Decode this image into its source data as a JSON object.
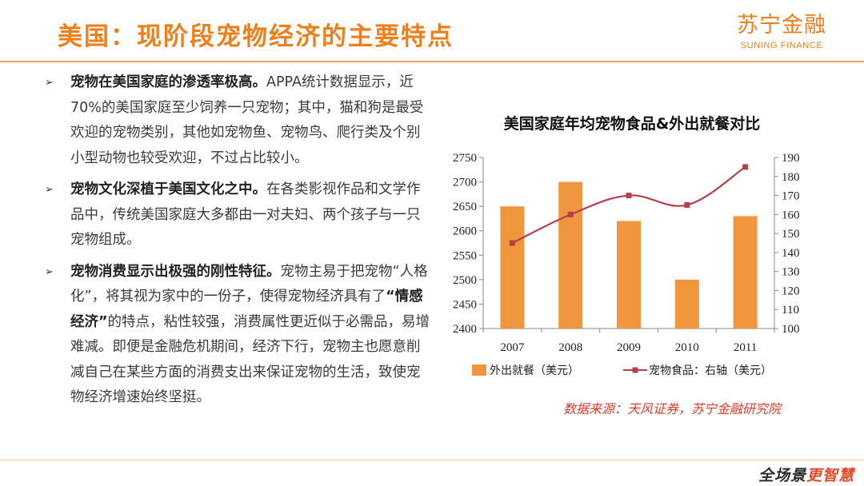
{
  "header": {
    "title": "美国：现阶段宠物经济的主要特点",
    "logo_cn": "苏宁金融",
    "logo_en": "SUNING FINANCE"
  },
  "bullets": [
    {
      "bold": "宠物在美国家庭的渗透率极高。",
      "text": "APPA统计数据显示，近70%的美国家庭至少饲养一只宠物；其中，猫和狗是最受欢迎的宠物类别，其他如宠物鱼、宠物鸟、爬行类及个别小型动物也较受欢迎，不过占比较小。"
    },
    {
      "bold": "宠物文化深植于美国文化之中。",
      "text": "在各类影视作品和文学作品中，传统美国家庭大多都由一对夫妇、两个孩子与一只宠物组成。"
    },
    {
      "bold": "宠物消费显示出极强的刚性特征。",
      "text_before": "宠物主易于把宠物“人格化”，将其视为家中的一份子，使得宠物经济具有了",
      "bold_inline": "“情感经济”",
      "text_after": "的特点，粘性较强，消费属性更近似于必需品，易增难减。即便是金融危机期间，经济下行，宠物主也愿意削减自己在某些方面的消费支出来保证宠物的生活，致使宠物经济增速始终坚挺。"
    }
  ],
  "chart_data": {
    "type": "bar",
    "title": "美国家庭年均宠物食品&外出就餐对比",
    "categories": [
      "2007",
      "2008",
      "2009",
      "2010",
      "2011"
    ],
    "series": [
      {
        "name": "外出就餐（美元）",
        "type": "bar",
        "axis": "left",
        "color": "#f0963e",
        "values": [
          2650,
          2700,
          2620,
          2500,
          2630
        ]
      },
      {
        "name": "宠物食品：右轴（美元）",
        "type": "line",
        "axis": "right",
        "color": "#b5404a",
        "values": [
          145,
          160,
          170,
          165,
          185
        ]
      }
    ],
    "y_left": {
      "min": 2400,
      "max": 2750,
      "step": 50,
      "ticks": [
        "2400",
        "2450",
        "2500",
        "2550",
        "2600",
        "2650",
        "2700",
        "2750"
      ]
    },
    "y_right": {
      "min": 100,
      "max": 190,
      "step": 10,
      "ticks": [
        "100",
        "110",
        "120",
        "130",
        "140",
        "150",
        "160",
        "170",
        "180",
        "190"
      ]
    },
    "legend_position": "bottom",
    "grid": false
  },
  "source": "数据来源：天风证券，苏宁金融研究院",
  "footer": {
    "brand_main": "全场景",
    "brand_accent": "更智慧"
  }
}
